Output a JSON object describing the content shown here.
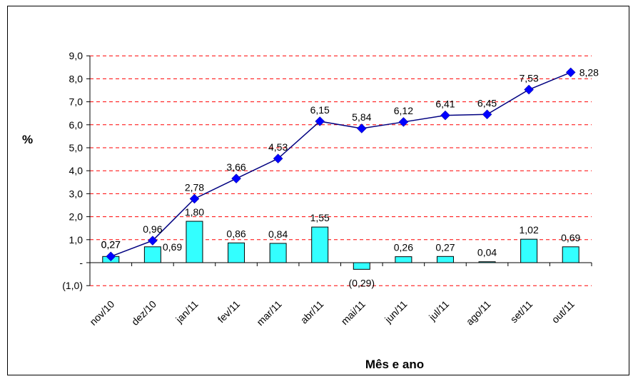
{
  "chart_data": {
    "type": "bar",
    "title": "",
    "xlabel": "Mês e ano",
    "ylabel": "%",
    "ylim": [
      -1,
      9
    ],
    "yticks": [
      -1,
      0,
      1,
      2,
      3,
      4,
      5,
      6,
      7,
      8,
      9
    ],
    "ytick_labels": [
      "(1,0)",
      "-",
      "1,0",
      "2,0",
      "3,0",
      "4,0",
      "5,0",
      "6,0",
      "7,0",
      "8,0",
      "9,0"
    ],
    "grid": "horizontal dashed",
    "categories": [
      "nov/10",
      "dez/10",
      "jan/11",
      "fev/11",
      "mar/11",
      "abr/11",
      "mai/11",
      "jun/11",
      "jul/11",
      "ago/11",
      "set/11",
      "out/11"
    ],
    "series": [
      {
        "kind": "bar",
        "values": [
          0.27,
          0.69,
          1.8,
          0.86,
          0.84,
          1.55,
          -0.29,
          0.26,
          0.27,
          0.04,
          1.02,
          0.69
        ],
        "labels": [
          "0,27",
          "0,69",
          "1,80",
          "0,86",
          "0,84",
          "1,55",
          "(0,29)",
          "0,26",
          "0,27",
          "0,04",
          "1,02",
          "0,69"
        ],
        "color": "#33ffff"
      },
      {
        "kind": "line",
        "values": [
          0.27,
          0.96,
          2.78,
          3.66,
          4.53,
          6.15,
          5.84,
          6.12,
          6.41,
          6.45,
          7.53,
          8.28
        ],
        "labels": [
          "0,27",
          "0,96",
          "2,78",
          "3,66",
          "4,53",
          "6,15",
          "5,84",
          "6,12",
          "6,41",
          "6,45",
          "7,53",
          "8,28"
        ],
        "color": "#0000ff",
        "line_color": "#000080"
      }
    ]
  }
}
